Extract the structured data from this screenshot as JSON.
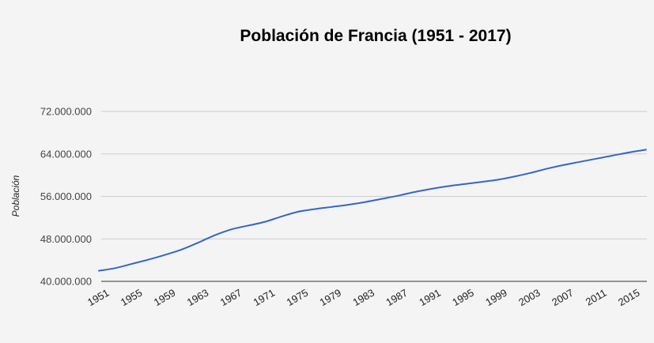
{
  "chart_data": {
    "type": "line",
    "title": "Población de Francia (1951 - 2017)",
    "xlabel": "",
    "ylabel": "Población",
    "xlim": [
      1951,
      2017
    ],
    "ylim": [
      40000000,
      72000000
    ],
    "yticks": [
      40000000,
      48000000,
      56000000,
      64000000,
      72000000
    ],
    "ytick_labels": [
      "40.000.000",
      "48.000.000",
      "56.000.000",
      "64.000.000",
      "72.000.000"
    ],
    "xticks": [
      1951,
      1955,
      1959,
      1963,
      1967,
      1971,
      1975,
      1979,
      1983,
      1987,
      1991,
      1995,
      1999,
      2003,
      2007,
      2011,
      2015
    ],
    "xtick_labels": [
      "1951",
      "1955",
      "1959",
      "1963",
      "1967",
      "1971",
      "1975",
      "1979",
      "1983",
      "1987",
      "1991",
      "1995",
      "1999",
      "2003",
      "2007",
      "2011",
      "2015"
    ],
    "grid": true,
    "legend": "none",
    "line_color": "#3366cc",
    "series": [
      {
        "x": [
          1951,
          1953,
          1955,
          1957,
          1959,
          1961,
          1963,
          1965,
          1967,
          1969,
          1971,
          1973,
          1975,
          1977,
          1979,
          1981,
          1983,
          1985,
          1987,
          1989,
          1991,
          1993,
          1995,
          1997,
          1999,
          2001,
          2003,
          2005,
          2007,
          2009,
          2011,
          2013,
          2015,
          2017
        ],
        "values": [
          42000000,
          42500000,
          43300000,
          44100000,
          45000000,
          46000000,
          47300000,
          48700000,
          49800000,
          50500000,
          51200000,
          52200000,
          53100000,
          53600000,
          54000000,
          54400000,
          54900000,
          55500000,
          56100000,
          56800000,
          57400000,
          57900000,
          58300000,
          58700000,
          59100000,
          59700000,
          60400000,
          61200000,
          61900000,
          62500000,
          63100000,
          63700000,
          64300000,
          64800000
        ]
      }
    ]
  }
}
